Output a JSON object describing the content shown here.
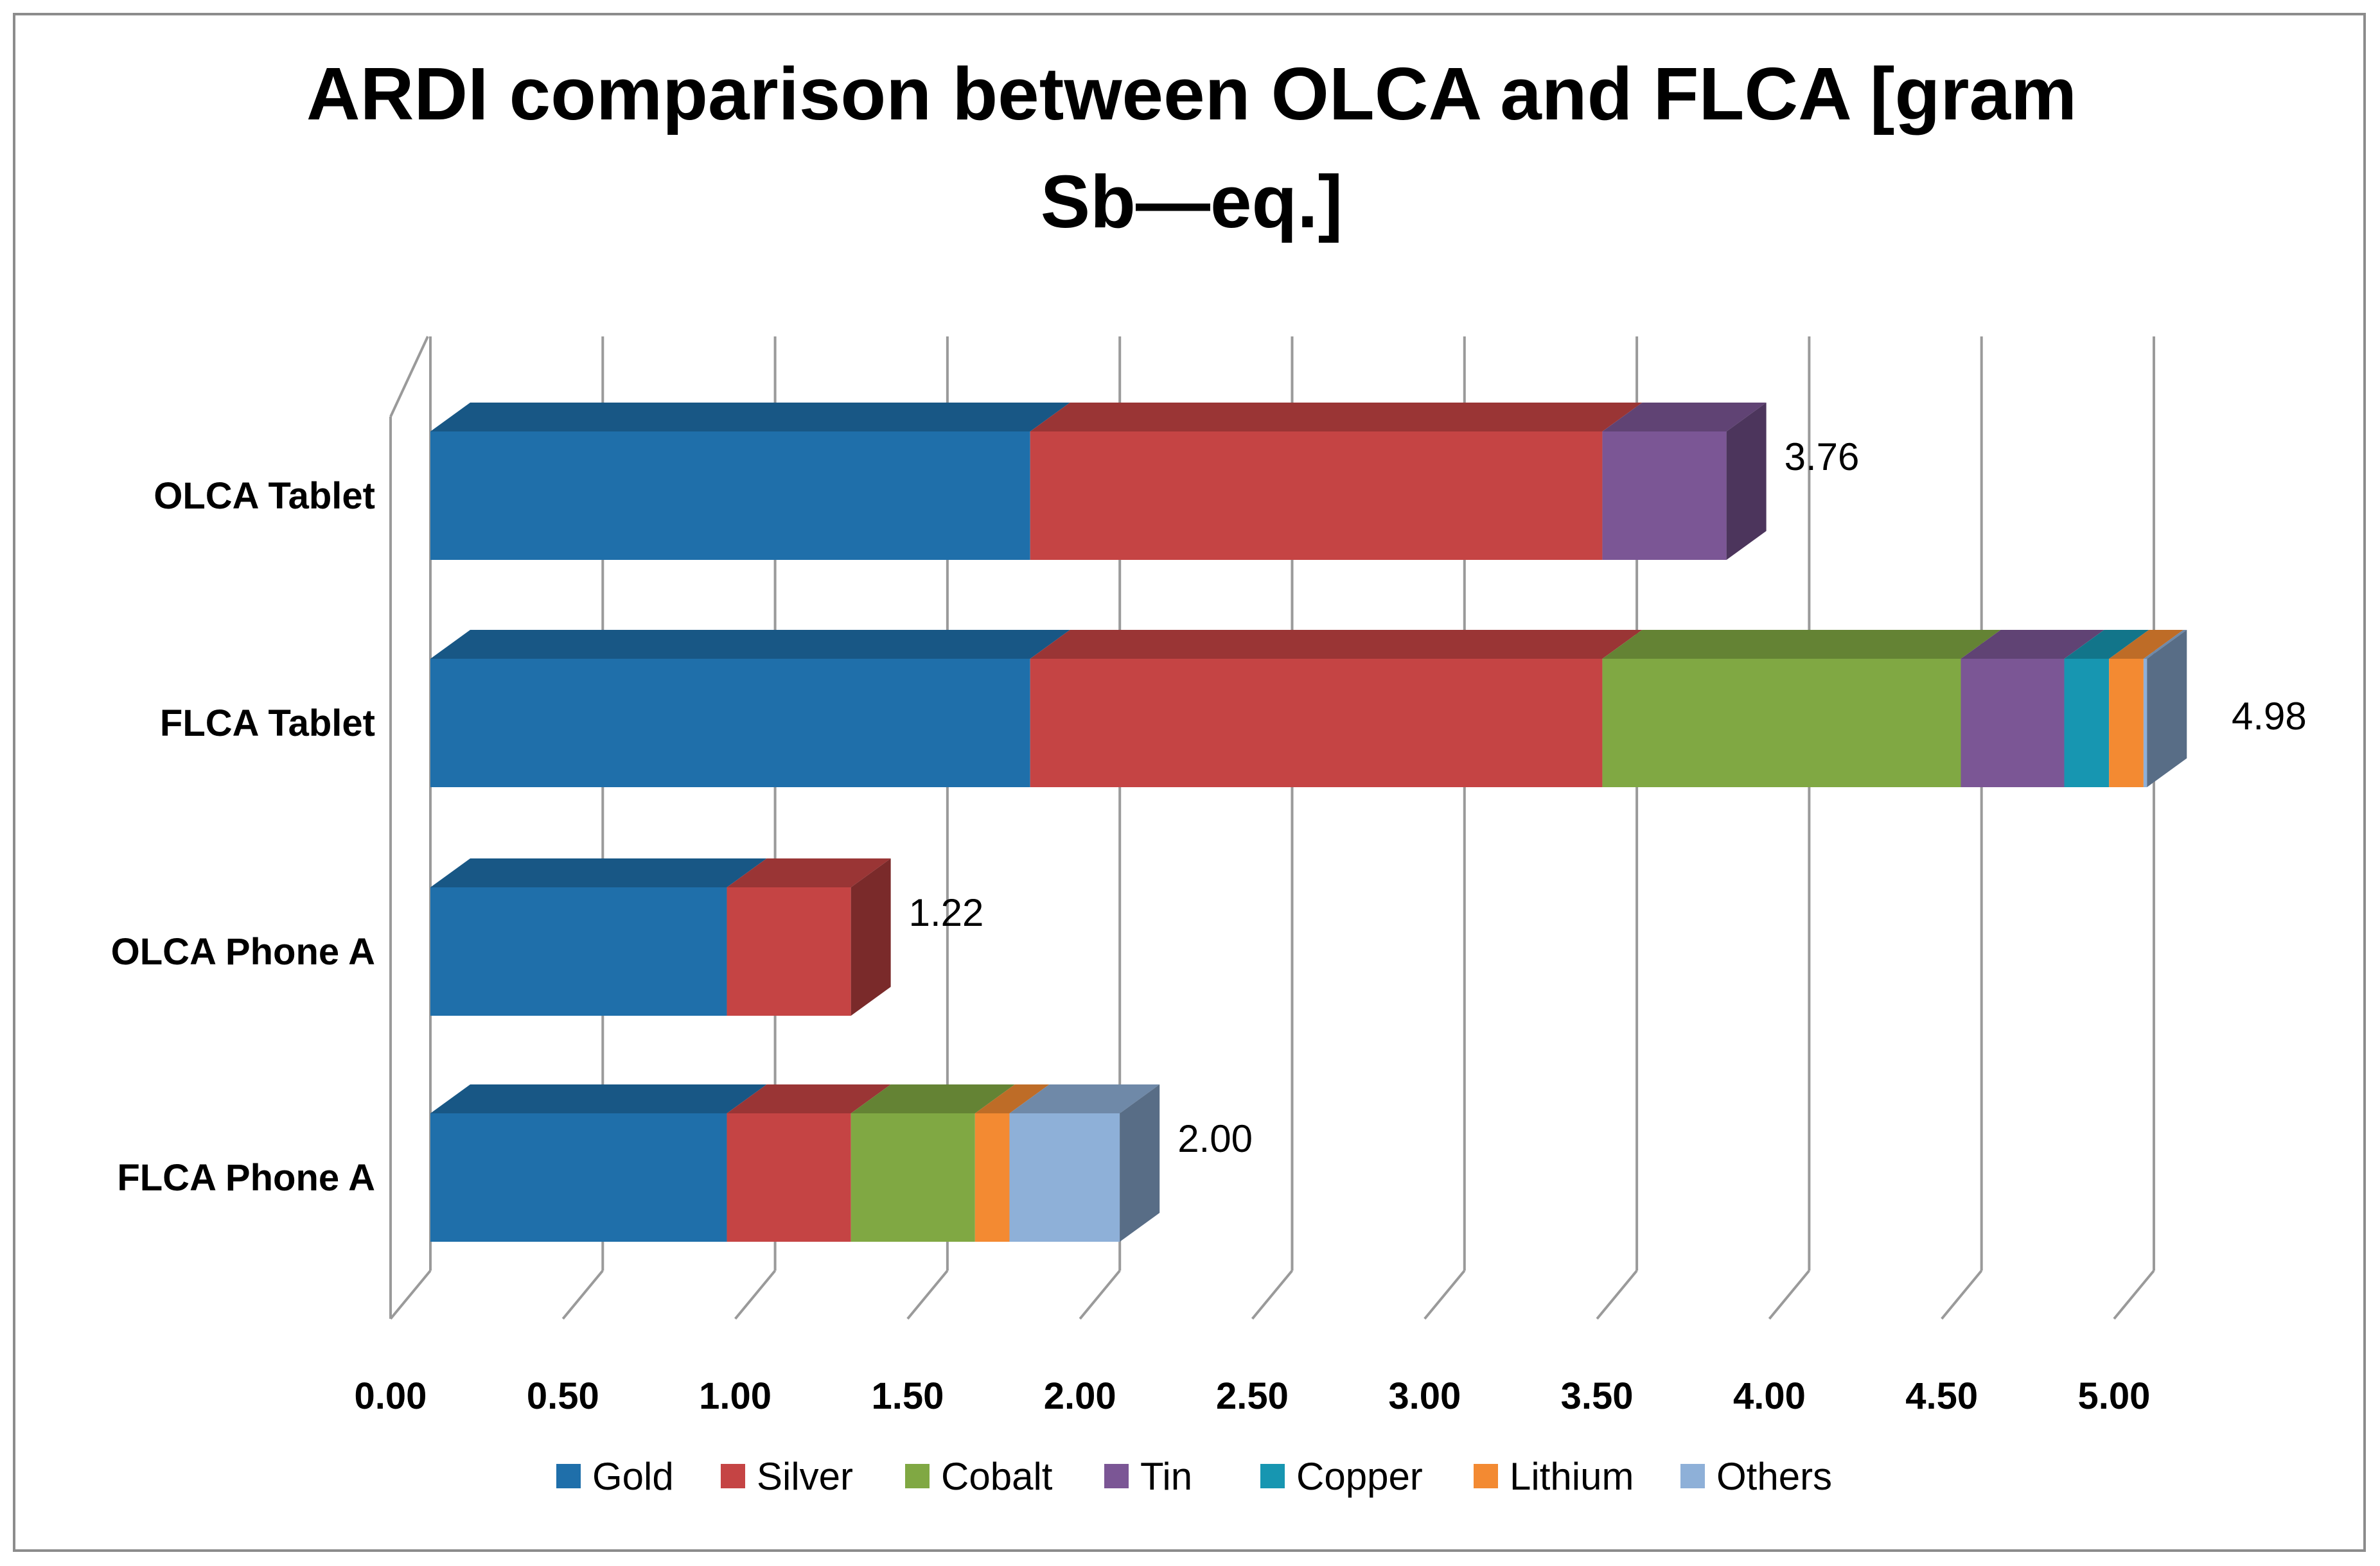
{
  "chart_data": {
    "type": "bar",
    "orientation": "horizontal",
    "stacked": true,
    "three_d": true,
    "title_lines": [
      "ARDI comparison between OLCA and FLCA [gram",
      "Sb—eq.]"
    ],
    "xlim": [
      0,
      5
    ],
    "x_ticks": [
      "0.00",
      "0.50",
      "1.00",
      "1.50",
      "2.00",
      "2.50",
      "3.00",
      "3.50",
      "4.00",
      "4.50",
      "5.00"
    ],
    "grid": true,
    "legend_position": "bottom",
    "categories": [
      "OLCA Tablet",
      "FLCA Tablet",
      "OLCA Phone A",
      "FLCA Phone A"
    ],
    "series": [
      {
        "name": "Gold",
        "color": "#1f6faa",
        "values": [
          1.74,
          1.74,
          0.86,
          0.86
        ]
      },
      {
        "name": "Silver",
        "color": "#c54444",
        "values": [
          1.66,
          1.66,
          0.36,
          0.36
        ]
      },
      {
        "name": "Cobalt",
        "color": "#80a843",
        "values": [
          0.0,
          1.04,
          0.0,
          0.36
        ]
      },
      {
        "name": "Tin",
        "color": "#7b5695",
        "values": [
          0.36,
          0.3,
          0.0,
          0.0
        ]
      },
      {
        "name": "Copper",
        "color": "#1796b1",
        "values": [
          0.0,
          0.13,
          0.0,
          0.0
        ]
      },
      {
        "name": "Lithium",
        "color": "#f38a32",
        "values": [
          0.0,
          0.1,
          0.0,
          0.1
        ]
      },
      {
        "name": "Others",
        "color": "#8eb0d8",
        "values": [
          0.0,
          0.01,
          0.0,
          0.32
        ]
      }
    ],
    "totals": [
      "3.76",
      "4.98",
      "1.22",
      "2.00"
    ]
  }
}
